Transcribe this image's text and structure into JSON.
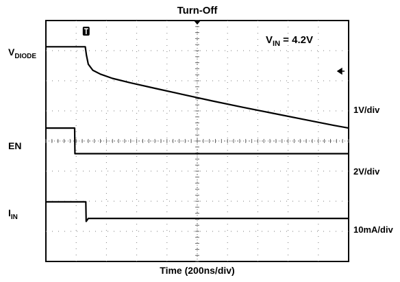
{
  "chart_data": {
    "type": "line",
    "title": "Turn-Off",
    "xlabel": "Time (200ns/div)",
    "x_divisions": 10,
    "y_divisions": 8,
    "grid": true,
    "annotation": {
      "prefix": "V",
      "sub": "IN",
      "value": " = 4.2V"
    },
    "series": [
      {
        "label_main": "V",
        "label_sub": "DIODE",
        "scale": "1V/div",
        "x": [
          0,
          1.3,
          1.34,
          1.4,
          1.55,
          1.8,
          2.2,
          2.8,
          3.6,
          4.5,
          5.5,
          6.5,
          7.5,
          8.5,
          9.5,
          10
        ],
        "divs": [
          7.13,
          7.13,
          6.85,
          6.55,
          6.35,
          6.22,
          6.08,
          5.93,
          5.75,
          5.55,
          5.33,
          5.12,
          4.92,
          4.72,
          4.52,
          4.43
        ]
      },
      {
        "label_main": "EN",
        "label_sub": "",
        "scale": "2V/div",
        "x": [
          0,
          0.95,
          0.96,
          10
        ],
        "divs": [
          4.43,
          4.43,
          3.58,
          3.58
        ]
      },
      {
        "label_main": "I",
        "label_sub": "IN",
        "scale": "10mA/div",
        "x": [
          0,
          1.32,
          1.33,
          1.4,
          10
        ],
        "divs": [
          1.98,
          1.98,
          1.33,
          1.43,
          1.43
        ]
      }
    ]
  }
}
